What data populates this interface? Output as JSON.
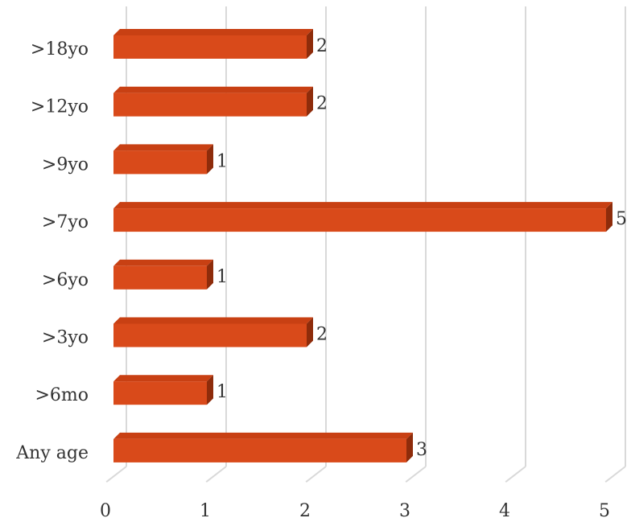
{
  "chart_data": {
    "type": "bar",
    "orientation": "horizontal",
    "three_d": true,
    "categories": [
      ">18yo",
      ">12yo",
      ">9yo",
      ">7yo",
      ">6yo",
      ">3yo",
      ">6mo",
      "Any age"
    ],
    "values": [
      2,
      2,
      1,
      5,
      1,
      2,
      1,
      3
    ],
    "data_labels": [
      "2",
      "2",
      "1",
      "5",
      "1",
      "2",
      "1",
      "3"
    ],
    "x_ticks": [
      "0",
      "1",
      "2",
      "3",
      "4",
      "5"
    ],
    "xlim": [
      0,
      5
    ],
    "grid": true,
    "legend": "none",
    "title": "",
    "xlabel": "",
    "ylabel": "",
    "colors": {
      "bar_front": "#D94A1A",
      "bar_top": "#C84013",
      "bar_side": "#8E2C0B",
      "grid": "#D9D9D9",
      "text": "#333333"
    }
  }
}
